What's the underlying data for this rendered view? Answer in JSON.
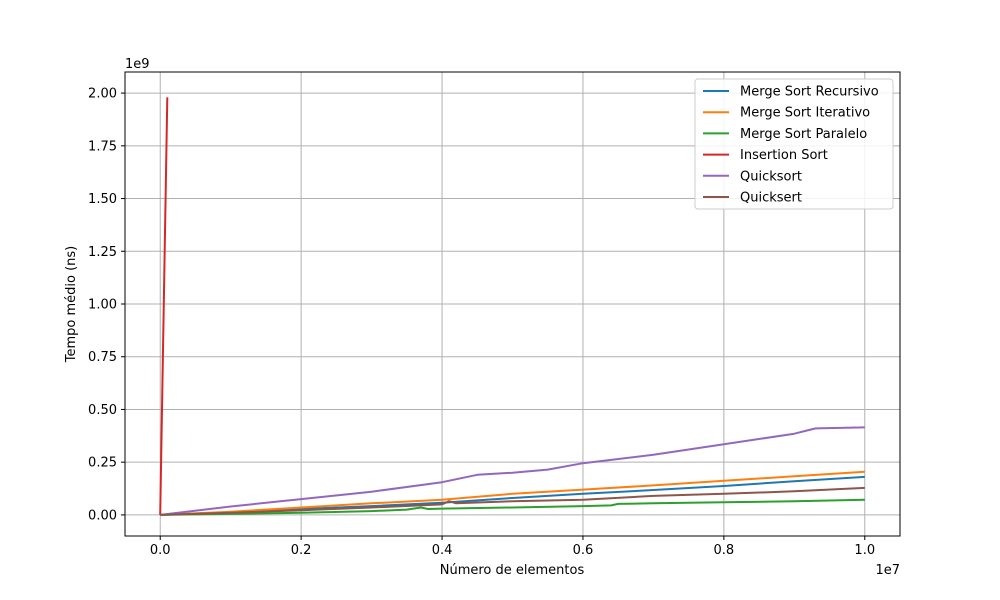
{
  "chart_data": {
    "type": "line",
    "title": "",
    "xlabel": "Número de elementos",
    "ylabel": "Tempo médio (ns)",
    "x_offset_label": "1e7",
    "y_offset_label": "1e9",
    "xlim": [
      -0.05,
      1.05
    ],
    "ylim": [
      -0.1,
      2.1
    ],
    "x_ticks": [
      0.0,
      0.2,
      0.4,
      0.6,
      0.8,
      1.0
    ],
    "x_tick_labels": [
      "0.0",
      "0.2",
      "0.4",
      "0.6",
      "0.8",
      "1.0"
    ],
    "y_ticks": [
      0.0,
      0.25,
      0.5,
      0.75,
      1.0,
      1.25,
      1.5,
      1.75,
      2.0
    ],
    "y_tick_labels": [
      "0.00",
      "0.25",
      "0.50",
      "0.75",
      "1.00",
      "1.25",
      "1.50",
      "1.75",
      "2.00"
    ],
    "grid": true,
    "legend_position": "top-right",
    "series": [
      {
        "name": "Merge Sort Recursivo",
        "color": "#1f77b4",
        "x": [
          0.0,
          0.1,
          0.2,
          0.3,
          0.4,
          0.5,
          0.6,
          0.7,
          0.8,
          0.9,
          1.0
        ],
        "y": [
          0.0,
          0.012,
          0.028,
          0.042,
          0.058,
          0.08,
          0.1,
          0.118,
          0.137,
          0.16,
          0.18
        ]
      },
      {
        "name": "Merge Sort Iterativo",
        "color": "#ff7f0e",
        "x": [
          0.0,
          0.1,
          0.2,
          0.3,
          0.4,
          0.5,
          0.6,
          0.7,
          0.8,
          0.9,
          1.0
        ],
        "y": [
          0.0,
          0.015,
          0.035,
          0.055,
          0.072,
          0.1,
          0.12,
          0.14,
          0.162,
          0.183,
          0.205
        ]
      },
      {
        "name": "Merge Sort Paralelo",
        "color": "#2ca02c",
        "x": [
          0.0,
          0.1,
          0.2,
          0.3,
          0.35,
          0.37,
          0.38,
          0.4,
          0.5,
          0.6,
          0.64,
          0.65,
          0.7,
          0.8,
          0.9,
          1.0
        ],
        "y": [
          0.0,
          0.005,
          0.01,
          0.018,
          0.025,
          0.035,
          0.028,
          0.03,
          0.035,
          0.042,
          0.045,
          0.052,
          0.055,
          0.06,
          0.065,
          0.072
        ]
      },
      {
        "name": "Insertion Sort",
        "color": "#d62728",
        "x": [
          0.0,
          0.01
        ],
        "y": [
          0.0,
          1.98
        ]
      },
      {
        "name": "Quicksort",
        "color": "#9467bd",
        "x": [
          0.0,
          0.1,
          0.2,
          0.3,
          0.4,
          0.45,
          0.5,
          0.55,
          0.6,
          0.7,
          0.8,
          0.9,
          0.93,
          1.0
        ],
        "y": [
          0.0,
          0.04,
          0.075,
          0.11,
          0.155,
          0.19,
          0.2,
          0.215,
          0.245,
          0.285,
          0.335,
          0.385,
          0.41,
          0.415
        ]
      },
      {
        "name": "Quicksert",
        "color": "#8c564b",
        "x": [
          0.0,
          0.1,
          0.2,
          0.3,
          0.4,
          0.41,
          0.42,
          0.5,
          0.6,
          0.7,
          0.8,
          0.9,
          1.0
        ],
        "y": [
          0.0,
          0.01,
          0.022,
          0.035,
          0.05,
          0.065,
          0.055,
          0.065,
          0.072,
          0.09,
          0.1,
          0.112,
          0.128
        ]
      }
    ]
  }
}
